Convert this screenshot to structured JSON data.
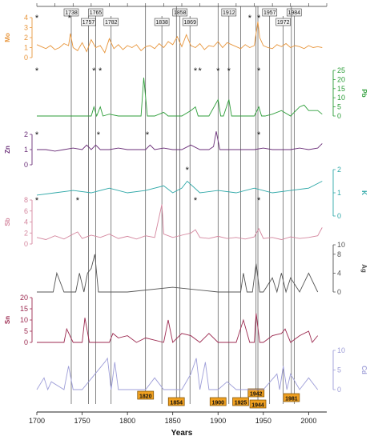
{
  "chart_data": {
    "type": "line",
    "xlabel": "Years",
    "xlim": [
      1700,
      2020
    ],
    "x_ticks": [
      "1700",
      "1750",
      "1800",
      "1850",
      "1900",
      "1950",
      "2000"
    ],
    "top_year_labels": [
      "1738",
      "1757",
      "1765",
      "1782",
      "1838",
      "1858",
      "1869",
      "1912",
      "1957",
      "1972",
      "1984"
    ],
    "bottom_year_labels": [
      "1820",
      "1854",
      "1900",
      "1925",
      "1942",
      "1944",
      "1981"
    ],
    "series": [
      {
        "name": "Mo",
        "color": "#e8963c",
        "side": "left",
        "ylim": [
          0,
          4
        ],
        "ticks": [
          "0",
          "1",
          "2",
          "3",
          "4"
        ],
        "asterisks": [
          1700,
          1736,
          1935,
          1945
        ],
        "x": [
          1700,
          1705,
          1710,
          1715,
          1720,
          1725,
          1730,
          1735,
          1737,
          1740,
          1745,
          1750,
          1755,
          1760,
          1765,
          1770,
          1775,
          1780,
          1785,
          1790,
          1795,
          1800,
          1805,
          1810,
          1815,
          1820,
          1825,
          1830,
          1835,
          1840,
          1845,
          1850,
          1855,
          1860,
          1865,
          1870,
          1875,
          1880,
          1885,
          1890,
          1895,
          1900,
          1905,
          1910,
          1915,
          1920,
          1925,
          1930,
          1935,
          1940,
          1944,
          1946,
          1950,
          1955,
          1960,
          1965,
          1970,
          1975,
          1980,
          1985,
          1990,
          1995,
          2000,
          2005,
          2010,
          2015
        ],
        "values": [
          1.3,
          1.1,
          0.9,
          1.2,
          0.8,
          1.0,
          1.4,
          1.2,
          2.4,
          1.0,
          0.7,
          1.5,
          0.6,
          1.8,
          1.0,
          1.2,
          0.5,
          1.9,
          0.9,
          1.3,
          0.8,
          1.2,
          1.0,
          1.3,
          0.7,
          1.1,
          1.2,
          0.9,
          1.4,
          1.0,
          1.6,
          1.3,
          2.1,
          1.1,
          2.3,
          1.2,
          1.0,
          1.4,
          0.8,
          1.2,
          1.1,
          1.6,
          1.0,
          1.5,
          1.3,
          1.1,
          0.9,
          1.3,
          1.0,
          1.2,
          3.6,
          2.0,
          1.2,
          1.0,
          0.9,
          1.3,
          1.1,
          1.4,
          1.0,
          1.2,
          1.1,
          0.9,
          1.2,
          1.0,
          1.1,
          1.0
        ]
      },
      {
        "name": "Pb",
        "color": "#2e9e3a",
        "side": "right",
        "ylim": [
          0,
          25
        ],
        "ticks": [
          "0",
          "5",
          "10",
          "15",
          "20",
          "25"
        ],
        "asterisks": [
          1700,
          1763,
          1770,
          1875,
          1880,
          1900,
          1912,
          1945
        ],
        "x": [
          1700,
          1710,
          1720,
          1730,
          1740,
          1750,
          1760,
          1763,
          1766,
          1770,
          1773,
          1780,
          1790,
          1800,
          1810,
          1815,
          1818,
          1822,
          1830,
          1840,
          1845,
          1850,
          1860,
          1870,
          1875,
          1878,
          1882,
          1890,
          1900,
          1903,
          1906,
          1912,
          1915,
          1920,
          1930,
          1940,
          1945,
          1948,
          1952,
          1960,
          1970,
          1980,
          1990,
          1995,
          2000,
          2010,
          2015
        ],
        "values": [
          0,
          0,
          0,
          0,
          0,
          0,
          0,
          5,
          0,
          5,
          0,
          1,
          0,
          0,
          0,
          0,
          21,
          0,
          0,
          2,
          0,
          0,
          0,
          3,
          5,
          0,
          0,
          0,
          9,
          0,
          0,
          9,
          0,
          0,
          0,
          0,
          5,
          0,
          0,
          1,
          3,
          0,
          5,
          6,
          3,
          3,
          1
        ]
      },
      {
        "name": "Zn",
        "color": "#6a2e78",
        "side": "left",
        "ylim": [
          0,
          2
        ],
        "ticks": [
          "0",
          "1",
          "2"
        ],
        "asterisks": [
          1700,
          1768,
          1822,
          1945
        ],
        "x": [
          1700,
          1710,
          1720,
          1730,
          1740,
          1750,
          1755,
          1760,
          1765,
          1770,
          1780,
          1790,
          1800,
          1810,
          1820,
          1825,
          1830,
          1840,
          1850,
          1860,
          1870,
          1880,
          1890,
          1895,
          1898,
          1902,
          1910,
          1920,
          1930,
          1940,
          1950,
          1960,
          1970,
          1980,
          1990,
          2000,
          2010,
          2015
        ],
        "values": [
          1.0,
          1.0,
          0.9,
          1.0,
          1.1,
          1.0,
          1.3,
          1.0,
          1.3,
          1.0,
          1.0,
          1.1,
          1.0,
          1.0,
          1.0,
          1.3,
          1.0,
          1.1,
          1.0,
          1.0,
          1.3,
          1.0,
          1.0,
          1.2,
          2.2,
          1.0,
          1.0,
          1.0,
          1.0,
          1.0,
          1.1,
          1.0,
          1.0,
          1.0,
          1.1,
          1.0,
          1.1,
          1.4
        ]
      },
      {
        "name": "K",
        "color": "#2fa8a8",
        "side": "right",
        "ylim": [
          0,
          2
        ],
        "ticks": [
          "0",
          "1",
          "2"
        ],
        "asterisks": [
          1866
        ],
        "x": [
          1700,
          1720,
          1740,
          1760,
          1780,
          1800,
          1820,
          1840,
          1850,
          1860,
          1866,
          1880,
          1900,
          1920,
          1940,
          1960,
          1980,
          2000,
          2015
        ],
        "values": [
          0.9,
          1.0,
          1.1,
          1.0,
          1.2,
          1.0,
          1.1,
          1.3,
          1.0,
          1.2,
          1.5,
          1.0,
          1.1,
          1.0,
          1.2,
          1.0,
          1.1,
          1.2,
          1.5
        ]
      },
      {
        "name": "Sb",
        "color": "#d4869e",
        "side": "left",
        "ylim": [
          0,
          8
        ],
        "ticks": [
          "0",
          "2",
          "4",
          "6",
          "8"
        ],
        "asterisks": [
          1700,
          1745,
          1875,
          1945
        ],
        "x": [
          1700,
          1710,
          1720,
          1730,
          1740,
          1745,
          1750,
          1760,
          1770,
          1780,
          1790,
          1800,
          1810,
          1820,
          1830,
          1838,
          1840,
          1850,
          1860,
          1870,
          1875,
          1880,
          1890,
          1900,
          1910,
          1920,
          1930,
          1940,
          1945,
          1950,
          1960,
          1970,
          1980,
          1990,
          2000,
          2010,
          2015
        ],
        "values": [
          1.2,
          0.8,
          1.5,
          0.9,
          1.8,
          2.2,
          1.0,
          1.6,
          1.2,
          1.8,
          1.0,
          1.4,
          0.9,
          1.5,
          1.2,
          7.2,
          1.8,
          1.2,
          1.6,
          2.0,
          2.6,
          1.2,
          1.0,
          1.4,
          1.0,
          1.2,
          0.9,
          1.3,
          2.8,
          1.0,
          1.2,
          0.8,
          1.3,
          1.0,
          1.2,
          1.5,
          3.0
        ]
      },
      {
        "name": "Ag",
        "color": "#555555",
        "side": "right",
        "ylim": [
          0,
          10
        ],
        "ticks": [
          "0",
          "4",
          "8",
          "10"
        ],
        "x": [
          1700,
          1710,
          1718,
          1722,
          1730,
          1743,
          1747,
          1752,
          1756,
          1760,
          1764,
          1768,
          1772,
          1780,
          1800,
          1850,
          1900,
          1925,
          1928,
          1932,
          1938,
          1942,
          1946,
          1950,
          1960,
          1965,
          1970,
          1975,
          1980,
          1990,
          2000,
          2010
        ],
        "values": [
          0,
          0,
          0,
          4,
          0,
          0,
          4,
          0,
          4,
          5,
          8,
          0,
          0,
          0,
          0,
          1,
          0,
          0,
          4,
          0,
          0,
          6,
          0,
          0,
          3,
          0,
          4,
          0,
          3,
          0,
          4,
          0
        ]
      },
      {
        "name": "Sn",
        "color": "#9c2a50",
        "side": "left",
        "ylim": [
          0,
          20
        ],
        "ticks": [
          "0",
          "5",
          "10",
          "15",
          "20"
        ],
        "x": [
          1700,
          1720,
          1730,
          1733,
          1740,
          1750,
          1753,
          1758,
          1770,
          1780,
          1784,
          1790,
          1800,
          1810,
          1820,
          1840,
          1845,
          1850,
          1860,
          1870,
          1880,
          1890,
          1900,
          1920,
          1928,
          1935,
          1940,
          1942,
          1946,
          1950,
          1960,
          1970,
          1974,
          1980,
          1990,
          2000,
          2004,
          2010
        ],
        "values": [
          0,
          0,
          0,
          6,
          0,
          0,
          11,
          0,
          0,
          0,
          4,
          2,
          3,
          0,
          2,
          0,
          10,
          0,
          4,
          3,
          0,
          4,
          0,
          0,
          10,
          0,
          0,
          13,
          0,
          0,
          3,
          4,
          6,
          0,
          3,
          5,
          0,
          3
        ]
      },
      {
        "name": "Cd",
        "color": "#9e9ed8",
        "side": "right",
        "ylim": [
          0,
          10
        ],
        "ticks": [
          "0",
          "5",
          "10"
        ],
        "x": [
          1700,
          1708,
          1712,
          1716,
          1730,
          1735,
          1740,
          1750,
          1775,
          1778,
          1782,
          1786,
          1790,
          1800,
          1820,
          1830,
          1840,
          1850,
          1860,
          1870,
          1876,
          1880,
          1886,
          1890,
          1900,
          1910,
          1920,
          1930,
          1940,
          1950,
          1965,
          1968,
          1972,
          1976,
          1980,
          1990,
          2000,
          2010
        ],
        "values": [
          0,
          3,
          0,
          2,
          0,
          6,
          0,
          0,
          7,
          8,
          0,
          7,
          0,
          0,
          0,
          3,
          0,
          0,
          0,
          4,
          8,
          0,
          7,
          0,
          0,
          2,
          0,
          0,
          0,
          0,
          4,
          0,
          6,
          0,
          4,
          0,
          3,
          0
        ]
      }
    ]
  }
}
